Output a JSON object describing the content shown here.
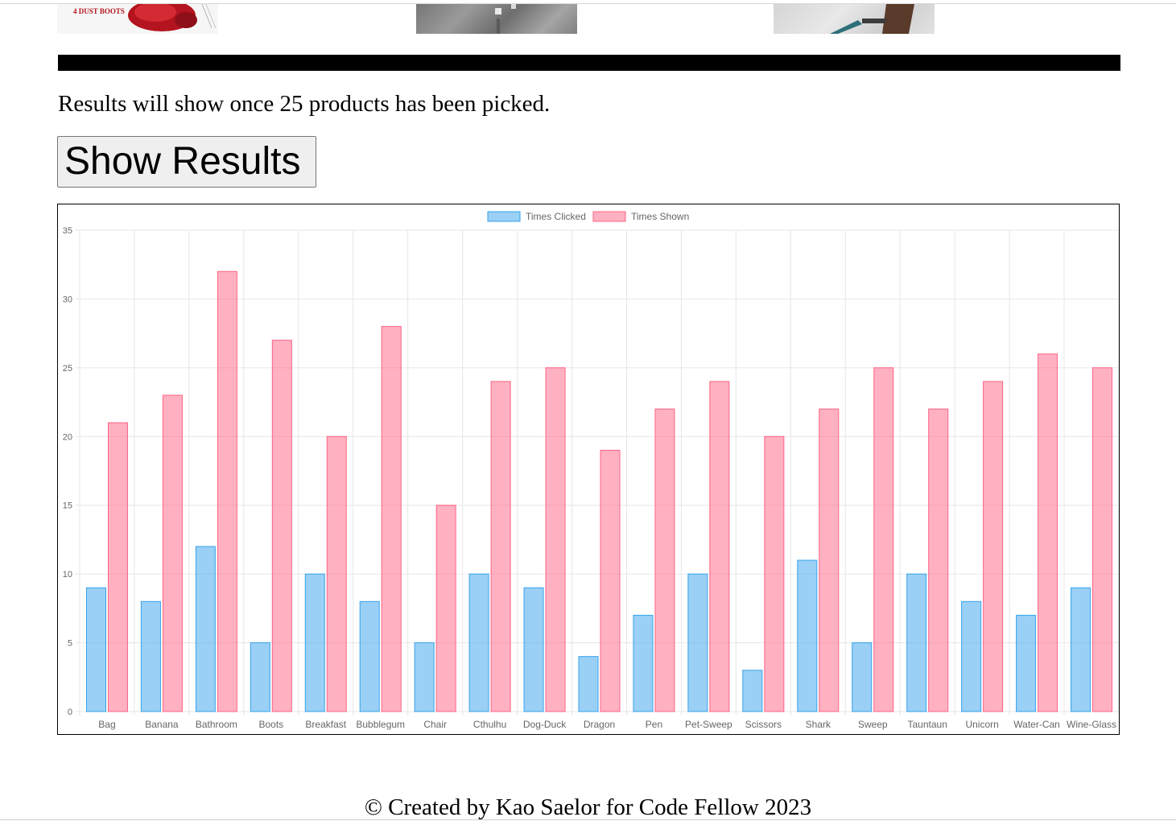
{
  "results_note": "Results will show once 25 products has been picked.",
  "show_results_label": "Show Results",
  "footer_text": "© Created by Kao Saelor for Code Fellow 2023",
  "product_images": [
    "dust-boots-mop-image",
    "street-pet-sweep-image",
    "fabric-sweep-image"
  ],
  "product_1_caption": "4 DUST BOOTS",
  "colors": {
    "clicked_fill": "rgba(54,162,235,0.5)",
    "clicked_stroke": "#36a2eb",
    "shown_fill": "rgba(255,99,132,0.5)",
    "shown_stroke": "#ff6384",
    "grid": "#e6e6e6",
    "tick_text": "#666666"
  },
  "chart_data": {
    "type": "bar",
    "title": "",
    "xlabel": "",
    "ylabel": "",
    "ylim": [
      0,
      35
    ],
    "y_ticks": [
      0,
      5,
      10,
      15,
      20,
      25,
      30,
      35
    ],
    "grid": true,
    "legend_position": "top",
    "categories": [
      "Bag",
      "Banana",
      "Bathroom",
      "Boots",
      "Breakfast",
      "Bubblegum",
      "Chair",
      "Cthulhu",
      "Dog-Duck",
      "Dragon",
      "Pen",
      "Pet-Sweep",
      "Scissors",
      "Shark",
      "Sweep",
      "Tauntaun",
      "Unicorn",
      "Water-Can",
      "Wine-Glass"
    ],
    "series": [
      {
        "name": "Times Clicked",
        "values": [
          9,
          8,
          12,
          5,
          10,
          8,
          5,
          10,
          9,
          4,
          7,
          10,
          3,
          11,
          5,
          10,
          8,
          7,
          9
        ]
      },
      {
        "name": "Times Shown",
        "values": [
          21,
          23,
          32,
          27,
          20,
          28,
          15,
          24,
          25,
          19,
          22,
          24,
          20,
          22,
          25,
          22,
          24,
          26,
          25
        ]
      }
    ]
  }
}
